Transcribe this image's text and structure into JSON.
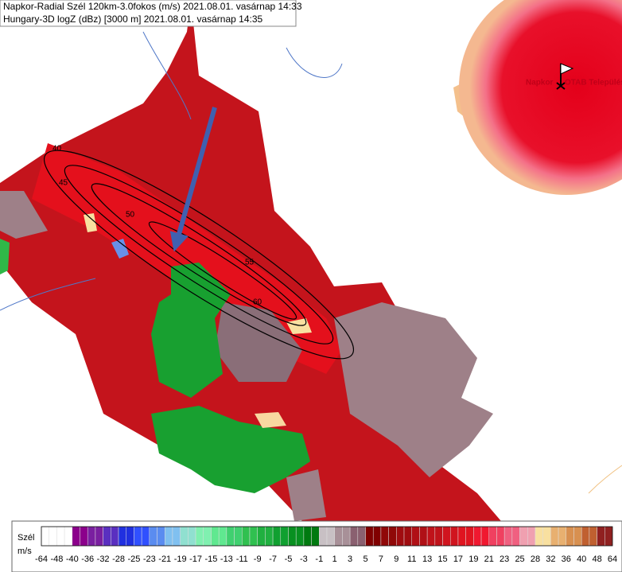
{
  "header": {
    "line1": "Napkor-Radial Szél 120km-3.0fokos (m/s) 2021.08.01. vasárnap 14:33",
    "line2": "Hungary-3D logZ (dBz) [3000 m] 2021.08.01. vasárnap 14:35"
  },
  "site": {
    "name": "Napkor",
    "layer": "OTAB Települési"
  },
  "contour_labels": [
    40,
    45,
    50,
    55,
    60
  ],
  "legend": {
    "title": "Szél",
    "unit": "m/s",
    "ticks": [
      -64,
      -48,
      -40,
      -36,
      -32,
      -28,
      -25,
      -23,
      -21,
      -19,
      -17,
      -15,
      -13,
      -11,
      -9,
      -7,
      -5,
      -3,
      -1,
      1,
      3,
      5,
      7,
      9,
      11,
      13,
      15,
      17,
      19,
      21,
      23,
      25,
      28,
      32,
      36,
      40,
      48,
      64
    ]
  }
}
